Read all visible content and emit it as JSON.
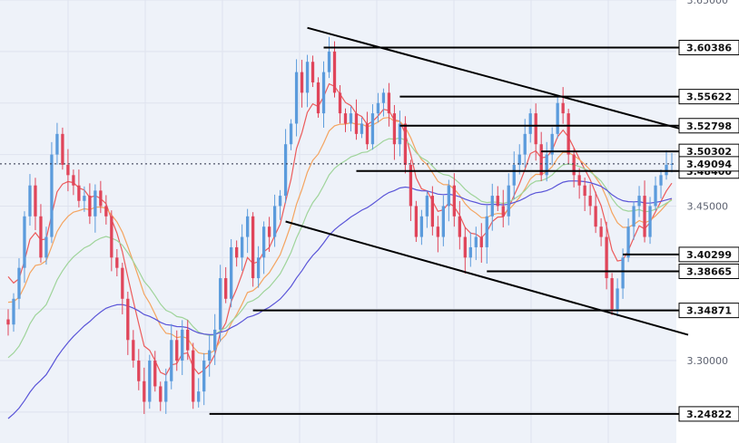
{
  "colors": {
    "background": "#ffffff",
    "plot_bg": "#eef2f9",
    "grid": "#dfe3ee",
    "bull": "#5b9bdc",
    "bear": "#e0455a",
    "ma_fast": "#ec5b5b",
    "ma_orange": "#f4a460",
    "ma_green": "#9fd49a",
    "ma_blue": "#5a55d8",
    "level_line": "#000000",
    "current_price_line": "#2a2f45"
  },
  "chart_data": {
    "type": "candlestick",
    "title": "",
    "xlabel": "",
    "ylabel": "",
    "ylim": [
      3.22,
      3.65
    ],
    "grid": true,
    "y_ticks": [
      "3.65000",
      "3.45000",
      "3.30000"
    ],
    "y_tick_values": [
      3.65,
      3.45,
      3.3
    ],
    "current_price": {
      "value": 3.49094,
      "label": "3.49094"
    },
    "horizontal_levels": [
      {
        "value": 3.60386,
        "label": "3.60386",
        "from_bar": 58
      },
      {
        "value": 3.55622,
        "label": "3.55622",
        "from_bar": 72
      },
      {
        "value": 3.52798,
        "label": "3.52798",
        "from_bar": 72
      },
      {
        "value": 3.50302,
        "label": "3.50302",
        "from_bar": 98
      },
      {
        "value": 3.484,
        "label": "3.48400",
        "from_bar": 64
      },
      {
        "value": 3.40299,
        "label": "3.40299",
        "from_bar": 113
      },
      {
        "value": 3.38665,
        "label": "3.38665",
        "from_bar": 88
      },
      {
        "value": 3.34871,
        "label": "3.34871",
        "from_bar": 45
      },
      {
        "value": 3.24822,
        "label": "3.24822",
        "from_bar": 37
      }
    ],
    "trendlines": [
      {
        "name": "upper-channel",
        "start": [
          55,
          3.623
        ],
        "end": [
          125,
          3.523
        ]
      },
      {
        "name": "lower-channel",
        "start": [
          51,
          3.435
        ],
        "end": [
          125,
          3.325
        ]
      }
    ],
    "ohlc_start_price": 3.34,
    "ohlc_closes": [
      3.335,
      3.36,
      3.39,
      3.44,
      3.47,
      3.44,
      3.4,
      3.42,
      3.5,
      3.52,
      3.49,
      3.48,
      3.47,
      3.455,
      3.46,
      3.44,
      3.465,
      3.45,
      3.44,
      3.4,
      3.39,
      3.36,
      3.32,
      3.3,
      3.28,
      3.26,
      3.3,
      3.275,
      3.26,
      3.28,
      3.32,
      3.3,
      3.33,
      3.31,
      3.26,
      3.27,
      3.3,
      3.31,
      3.33,
      3.38,
      3.36,
      3.41,
      3.4,
      3.42,
      3.44,
      3.38,
      3.4,
      3.43,
      3.42,
      3.45,
      3.46,
      3.51,
      3.53,
      3.58,
      3.56,
      3.59,
      3.57,
      3.54,
      3.58,
      3.6,
      3.56,
      3.54,
      3.53,
      3.54,
      3.52,
      3.53,
      3.51,
      3.54,
      3.55,
      3.56,
      3.54,
      3.51,
      3.53,
      3.49,
      3.45,
      3.42,
      3.44,
      3.46,
      3.43,
      3.42,
      3.45,
      3.47,
      3.44,
      3.42,
      3.4,
      3.41,
      3.42,
      3.41,
      3.44,
      3.46,
      3.45,
      3.44,
      3.47,
      3.49,
      3.5,
      3.52,
      3.54,
      3.51,
      3.48,
      3.5,
      3.52,
      3.55,
      3.54,
      3.5,
      3.48,
      3.47,
      3.46,
      3.45,
      3.43,
      3.42,
      3.38,
      3.35,
      3.37,
      3.4,
      3.43,
      3.45,
      3.46,
      3.42,
      3.45,
      3.47,
      3.48,
      3.49,
      3.491
    ]
  }
}
